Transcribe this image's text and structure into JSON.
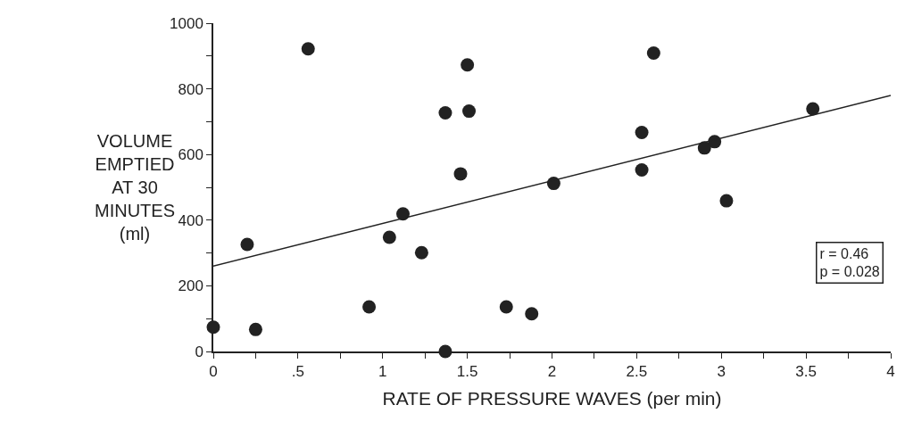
{
  "chart_data": {
    "type": "scatter",
    "xlabel": "RATE OF PRESSURE WAVES (per min)",
    "ylabel": "VOLUME\nEMPTIED\nAT 30\nMINUTES\n(ml)",
    "series": [
      {
        "color": "#222222",
        "marker": "circle",
        "x": [
          0,
          0.2,
          0.25,
          0.56,
          0.92,
          1.04,
          1.12,
          1.23,
          1.37,
          1.37,
          1.46,
          1.5,
          1.51,
          1.73,
          1.88,
          2.01,
          2.6,
          2.53,
          2.53,
          2.9,
          2.96,
          3.03,
          3.54
        ],
        "values": [
          74,
          326,
          67,
          922,
          136,
          348,
          419,
          301,
          727,
          0,
          541,
          873,
          732,
          136,
          115,
          512,
          909,
          667,
          553,
          620,
          639,
          459,
          739
        ]
      },
      {
        "type": "line",
        "color": "#222222",
        "marker": "none",
        "line_style": "solid",
        "x": [
          0,
          4
        ],
        "values": [
          260,
          780
        ]
      }
    ],
    "xlim": [
      0,
      4
    ],
    "xticks": [
      0,
      {
        "value": 0.25,
        "label": null
      },
      {
        "value": 0.5,
        "label": ".5"
      },
      {
        "value": 0.75,
        "label": null
      },
      1,
      {
        "value": 1.25,
        "label": null
      },
      1.5,
      {
        "value": 1.75,
        "label": null
      },
      2,
      {
        "value": 2.25,
        "label": null
      },
      2.5,
      {
        "value": 2.75,
        "label": null
      },
      3,
      {
        "value": 3.25,
        "label": null
      },
      3.5,
      {
        "value": 3.75,
        "label": null
      },
      4
    ],
    "ylim": [
      0,
      1000
    ],
    "yticks": [
      0,
      {
        "value": 100,
        "label": null
      },
      200,
      {
        "value": 300,
        "label": null
      },
      400,
      {
        "value": 500,
        "label": null
      },
      600,
      {
        "value": 700,
        "label": null
      },
      800,
      {
        "value": 900,
        "label": null
      },
      1000
    ],
    "annotations": [
      "r = 0.46\np = 0.028"
    ]
  }
}
